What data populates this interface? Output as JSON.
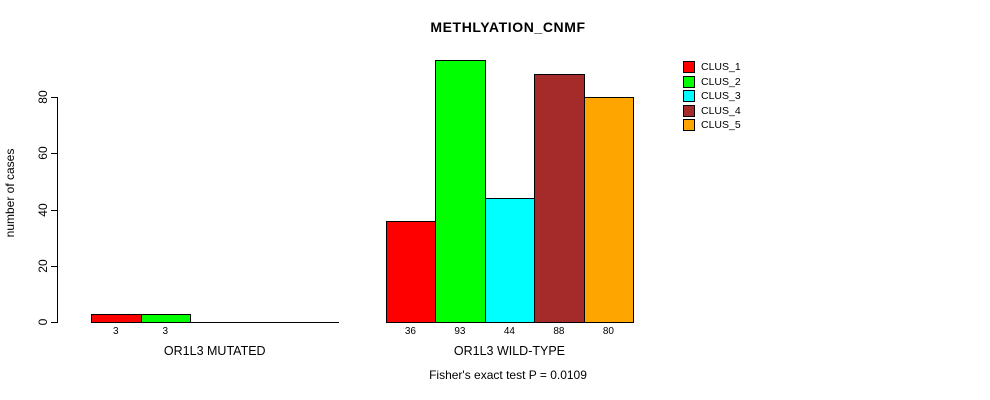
{
  "page": {
    "background": "#FFFFFF",
    "text_color": "#000000"
  },
  "chart_data": {
    "type": "bar",
    "title": "METHLYATION_CNMF",
    "ylabel": "number of cases",
    "xlabel": "",
    "ylim": [
      0,
      100
    ],
    "yticks": [
      0,
      20,
      40,
      60,
      80
    ],
    "grid": false,
    "legend_position": "top-right",
    "categories": [
      "OR1L3 MUTATED",
      "OR1L3 WILD-TYPE"
    ],
    "series": [
      {
        "name": "CLUS_1",
        "color": "#FF0000",
        "values": [
          3,
          36
        ]
      },
      {
        "name": "CLUS_2",
        "color": "#00FF00",
        "values": [
          3,
          93
        ]
      },
      {
        "name": "CLUS_3",
        "color": "#00FFFF",
        "values": [
          0,
          44
        ]
      },
      {
        "name": "CLUS_4",
        "color": "#A52A2A",
        "values": [
          0,
          88
        ]
      },
      {
        "name": "CLUS_5",
        "color": "#FFA500",
        "values": [
          0,
          80
        ]
      }
    ],
    "bar_value_labels": [
      [
        "3",
        "3",
        "",
        "",
        ""
      ],
      [
        "36",
        "93",
        "44",
        "88",
        "80"
      ]
    ],
    "annotation": "Fisher's exact test P = 0.0109"
  }
}
